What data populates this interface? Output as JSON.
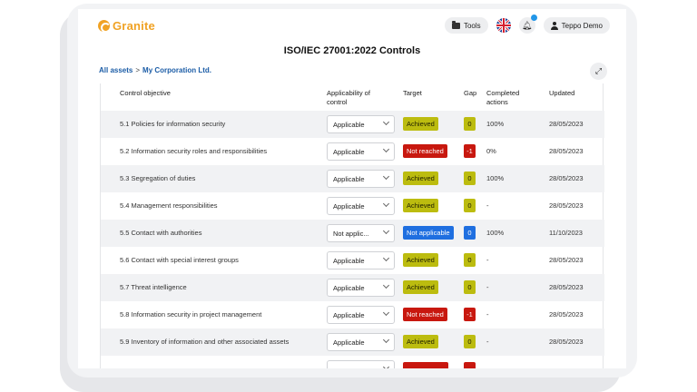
{
  "app": {
    "logo_text": "Granite"
  },
  "topbar": {
    "tools_label": "Tools",
    "user_name": "Teppo Demo"
  },
  "page_title": "ISO/IEC 27001:2022 Controls",
  "breadcrumb": {
    "root": "All assets",
    "separator": ">",
    "current": "My Corporation Ltd."
  },
  "table": {
    "headers": {
      "objective": "Control objective",
      "applicability": "Applicability of control",
      "target": "Target",
      "gap": "Gap",
      "completed": "Completed actions",
      "updated": "Updated"
    },
    "rows": [
      {
        "objective": "5.1 Policies for information security",
        "applicability": "Applicable",
        "target": "Achieved",
        "gap": "0",
        "completed": "100%",
        "updated": "28/05/2023"
      },
      {
        "objective": "5.2 Information security roles and responsibilities",
        "applicability": "Applicable",
        "target": "Not reached",
        "gap": "-1",
        "completed": "0%",
        "updated": "28/05/2023"
      },
      {
        "objective": "5.3 Segregation of duties",
        "applicability": "Applicable",
        "target": "Achieved",
        "gap": "0",
        "completed": "100%",
        "updated": "28/05/2023"
      },
      {
        "objective": "5.4 Management responsibilities",
        "applicability": "Applicable",
        "target": "Achieved",
        "gap": "0",
        "completed": "-",
        "updated": "28/05/2023"
      },
      {
        "objective": "5.5 Contact with authorities",
        "applicability": "Not applic...",
        "target": "Not applicable",
        "gap": "0",
        "completed": "100%",
        "updated": "11/10/2023"
      },
      {
        "objective": "5.6 Contact with special interest groups",
        "applicability": "Applicable",
        "target": "Achieved",
        "gap": "0",
        "completed": "-",
        "updated": "28/05/2023"
      },
      {
        "objective": "5.7 Threat intelligence",
        "applicability": "Applicable",
        "target": "Achieved",
        "gap": "0",
        "completed": "-",
        "updated": "28/05/2023"
      },
      {
        "objective": "5.8 Information security in project management",
        "applicability": "Applicable",
        "target": "Not reached",
        "gap": "-1",
        "completed": "-",
        "updated": "28/05/2023"
      },
      {
        "objective": "5.9 Inventory of information and other associated assets",
        "applicability": "Applicable",
        "target": "Achieved",
        "gap": "0",
        "completed": "-",
        "updated": "28/05/2023"
      },
      {
        "objective": "",
        "applicability": "",
        "target": "",
        "gap": "",
        "completed": "",
        "updated": ""
      }
    ]
  },
  "status_colors": {
    "Achieved": {
      "bg": "#bcbc0f",
      "fg": "#1f1f00"
    },
    "Not reached": {
      "bg": "#c8180f",
      "fg": "#ffffff"
    },
    "Not applicable": {
      "bg": "#1f6fe0",
      "fg": "#ffffff"
    }
  },
  "icons": [
    "granite-logo-icon",
    "folder-icon",
    "uk-flag-icon",
    "bell-icon",
    "user-icon",
    "expand-icon",
    "chevron-down-icon"
  ]
}
